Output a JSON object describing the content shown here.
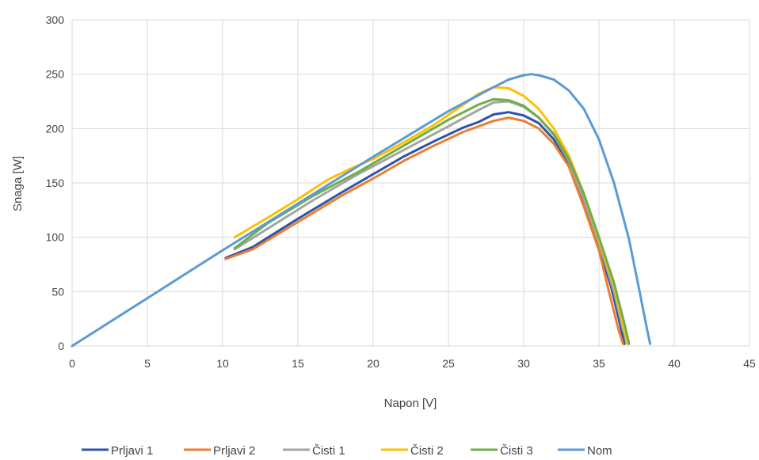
{
  "chart_data": {
    "type": "line",
    "title": "",
    "xlabel": "Napon [V]",
    "ylabel": "Snaga [W]",
    "xlim": [
      0,
      45
    ],
    "ylim": [
      0,
      300
    ],
    "xticks": [
      0,
      5,
      10,
      15,
      20,
      25,
      30,
      35,
      40,
      45
    ],
    "yticks": [
      0,
      50,
      100,
      150,
      200,
      250,
      300
    ],
    "grid": true,
    "legend_position": "bottom",
    "series": [
      {
        "name": "Prljavi 1",
        "color": "#2e54a8",
        "points": [
          [
            10.2,
            81
          ],
          [
            12,
            91
          ],
          [
            15,
            117
          ],
          [
            18,
            142
          ],
          [
            20,
            158
          ],
          [
            22,
            174
          ],
          [
            24,
            188
          ],
          [
            26,
            201
          ],
          [
            27,
            206
          ],
          [
            28,
            213
          ],
          [
            29,
            215
          ],
          [
            30,
            212
          ],
          [
            31,
            205
          ],
          [
            32,
            190
          ],
          [
            33,
            168
          ],
          [
            34,
            130
          ],
          [
            35,
            90
          ],
          [
            35.8,
            55
          ],
          [
            36.4,
            20
          ],
          [
            36.7,
            2
          ]
        ]
      },
      {
        "name": "Prljavi 2",
        "color": "#ed7d31",
        "points": [
          [
            10.2,
            80
          ],
          [
            12,
            89
          ],
          [
            15,
            114
          ],
          [
            18,
            139
          ],
          [
            20,
            154
          ],
          [
            22,
            170
          ],
          [
            24,
            184
          ],
          [
            26,
            197
          ],
          [
            28,
            207
          ],
          [
            29,
            210
          ],
          [
            30,
            207
          ],
          [
            31,
            200
          ],
          [
            32,
            186
          ],
          [
            33,
            165
          ],
          [
            34,
            128
          ],
          [
            35,
            88
          ],
          [
            35.7,
            48
          ],
          [
            36.3,
            15
          ],
          [
            36.6,
            2
          ]
        ]
      },
      {
        "name": "Čisti 1",
        "color": "#a5a5a5",
        "points": [
          [
            10.8,
            89
          ],
          [
            13,
            108
          ],
          [
            16,
            134
          ],
          [
            19,
            158
          ],
          [
            22,
            180
          ],
          [
            25,
            202
          ],
          [
            27,
            217
          ],
          [
            28,
            224
          ],
          [
            29,
            225
          ],
          [
            30,
            220
          ],
          [
            31,
            210
          ],
          [
            32,
            194
          ],
          [
            33,
            170
          ],
          [
            34,
            135
          ],
          [
            35,
            95
          ],
          [
            36,
            50
          ],
          [
            36.6,
            15
          ],
          [
            36.9,
            2
          ]
        ]
      },
      {
        "name": "Čisti 2",
        "color": "#ffc000",
        "points": [
          [
            10.8,
            100
          ],
          [
            13,
            118
          ],
          [
            15,
            135
          ],
          [
            17,
            153
          ],
          [
            18.5,
            163
          ],
          [
            20,
            172
          ],
          [
            22,
            187
          ],
          [
            24,
            203
          ],
          [
            26,
            222
          ],
          [
            27,
            232
          ],
          [
            28,
            238
          ],
          [
            29,
            237
          ],
          [
            30,
            230
          ],
          [
            31,
            218
          ],
          [
            32,
            200
          ],
          [
            33,
            175
          ],
          [
            34,
            140
          ],
          [
            35,
            98
          ],
          [
            36,
            55
          ],
          [
            36.6,
            20
          ],
          [
            36.9,
            2
          ]
        ]
      },
      {
        "name": "Čisti 3",
        "color": "#70ad47",
        "points": [
          [
            10.8,
            90
          ],
          [
            13,
            113
          ],
          [
            16,
            138
          ],
          [
            19,
            160
          ],
          [
            22,
            184
          ],
          [
            25,
            208
          ],
          [
            27,
            222
          ],
          [
            28,
            227
          ],
          [
            29,
            226
          ],
          [
            30,
            221
          ],
          [
            31,
            210
          ],
          [
            32,
            195
          ],
          [
            33,
            172
          ],
          [
            34,
            140
          ],
          [
            35,
            100
          ],
          [
            36,
            58
          ],
          [
            36.7,
            20
          ],
          [
            37,
            2
          ]
        ]
      },
      {
        "name": "Nom",
        "color": "#5b9bd5",
        "points": [
          [
            0,
            0
          ],
          [
            5,
            44
          ],
          [
            10,
            88
          ],
          [
            15,
            131
          ],
          [
            20,
            174
          ],
          [
            25,
            216
          ],
          [
            28,
            238
          ],
          [
            29,
            245
          ],
          [
            30,
            249
          ],
          [
            30.5,
            250
          ],
          [
            31,
            249
          ],
          [
            32,
            245
          ],
          [
            33,
            235
          ],
          [
            34,
            218
          ],
          [
            35,
            190
          ],
          [
            36,
            150
          ],
          [
            37,
            98
          ],
          [
            37.7,
            50
          ],
          [
            38.2,
            15
          ],
          [
            38.4,
            2
          ]
        ]
      }
    ]
  }
}
